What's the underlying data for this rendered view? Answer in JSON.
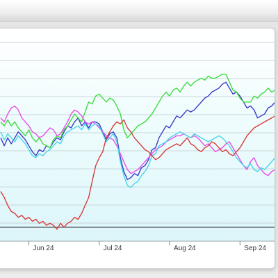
{
  "chart_data": {
    "type": "line",
    "x_tick_labels": [
      "Jun 24",
      "Jul 24",
      "Aug 24",
      "Sep 24"
    ],
    "x_tick_positions": [
      4,
      14,
      24,
      34
    ],
    "x_range": [
      0,
      39.5
    ],
    "ylim": [
      0,
      100
    ],
    "grid": "horizontal",
    "legend": "none",
    "baseline_y": 7,
    "series": [
      {
        "color": "#3b3bc8",
        "values": [
          52,
          48,
          52,
          49,
          52,
          55,
          53,
          51,
          48,
          45,
          43,
          46,
          45,
          48,
          47,
          50,
          52,
          51,
          55,
          58,
          57,
          60,
          62,
          58,
          60,
          57,
          60,
          60,
          59,
          55,
          51,
          54,
          55,
          52,
          42,
          35,
          31,
          32,
          34,
          33,
          37,
          38,
          41,
          46,
          47,
          52,
          55,
          58,
          57,
          60,
          63,
          62,
          64,
          66,
          65,
          66,
          68,
          70,
          72,
          73,
          75,
          76,
          77,
          79,
          80,
          77,
          74,
          75,
          73,
          70,
          67,
          68,
          66,
          62,
          63,
          64,
          67,
          68,
          70,
          73
        ]
      },
      {
        "color": "#3fdc3f",
        "values": [
          60,
          58,
          61,
          58,
          60,
          57,
          55,
          53,
          56,
          52,
          50,
          52,
          49,
          48,
          47,
          51,
          53,
          52,
          56,
          58,
          61,
          64,
          62,
          60,
          65,
          70,
          69,
          73,
          74,
          72,
          70,
          72,
          71,
          68,
          64,
          56,
          52,
          54,
          56,
          58,
          59,
          60,
          62,
          64,
          67,
          70,
          73,
          75,
          73,
          76,
          77,
          75,
          78,
          80,
          78,
          80,
          81,
          82,
          81,
          83,
          82,
          82,
          83,
          84,
          84,
          80,
          76,
          75,
          72,
          70,
          70,
          70,
          73,
          72,
          74,
          75,
          77,
          75,
          76,
          78
        ]
      },
      {
        "color": "#e84ee8",
        "values": [
          62,
          60,
          64,
          67,
          68,
          66,
          62,
          60,
          58,
          55,
          54,
          52,
          53,
          55,
          57,
          56,
          53,
          54,
          57,
          60,
          64,
          66,
          65,
          63,
          60,
          59,
          60,
          59,
          57,
          55,
          53,
          52,
          51,
          48,
          44,
          40,
          36,
          34,
          35,
          36,
          38,
          40,
          42,
          44,
          46,
          47,
          48,
          50,
          51,
          52,
          53,
          53,
          54,
          53,
          52,
          53,
          52,
          50,
          48,
          49,
          47,
          45,
          46,
          47,
          49,
          50,
          47,
          44,
          41,
          38,
          36,
          40,
          42,
          38,
          36,
          34,
          33,
          35,
          36,
          37
        ]
      },
      {
        "color": "#4ad4e8",
        "values": [
          55,
          51,
          54,
          52,
          50,
          53,
          51,
          49,
          46,
          43,
          42,
          44,
          43,
          45,
          46,
          48,
          50,
          49,
          53,
          55,
          56,
          57,
          58,
          56,
          59,
          56,
          58,
          59,
          58,
          54,
          50,
          52,
          54,
          50,
          40,
          33,
          28,
          27,
          29,
          30,
          33,
          35,
          38,
          43,
          44,
          48,
          49,
          50,
          52,
          53,
          54,
          55,
          54,
          53,
          52,
          54,
          53,
          52,
          51,
          50,
          51,
          52,
          53,
          52,
          50,
          48,
          45,
          42,
          40,
          38,
          37,
          39,
          36,
          35,
          37,
          36,
          38,
          40,
          42,
          43
        ]
      },
      {
        "color": "#d83a3a",
        "values": [
          25,
          22,
          18,
          15,
          14,
          12,
          13,
          11,
          12,
          10,
          11,
          9,
          10,
          8,
          9,
          8,
          6,
          9,
          7,
          9,
          10,
          12,
          11,
          14,
          18,
          22,
          30,
          38,
          42,
          45,
          52,
          55,
          58,
          60,
          59,
          61,
          57,
          55,
          52,
          50,
          48,
          46,
          45,
          43,
          41,
          42,
          44,
          46,
          47,
          48,
          49,
          48,
          50,
          52,
          49,
          48,
          46,
          45,
          47,
          48,
          50,
          49,
          47,
          45,
          46,
          44,
          43,
          45,
          47,
          50,
          53,
          55,
          57,
          58,
          59,
          60,
          61,
          62,
          63,
          64
        ]
      }
    ]
  }
}
